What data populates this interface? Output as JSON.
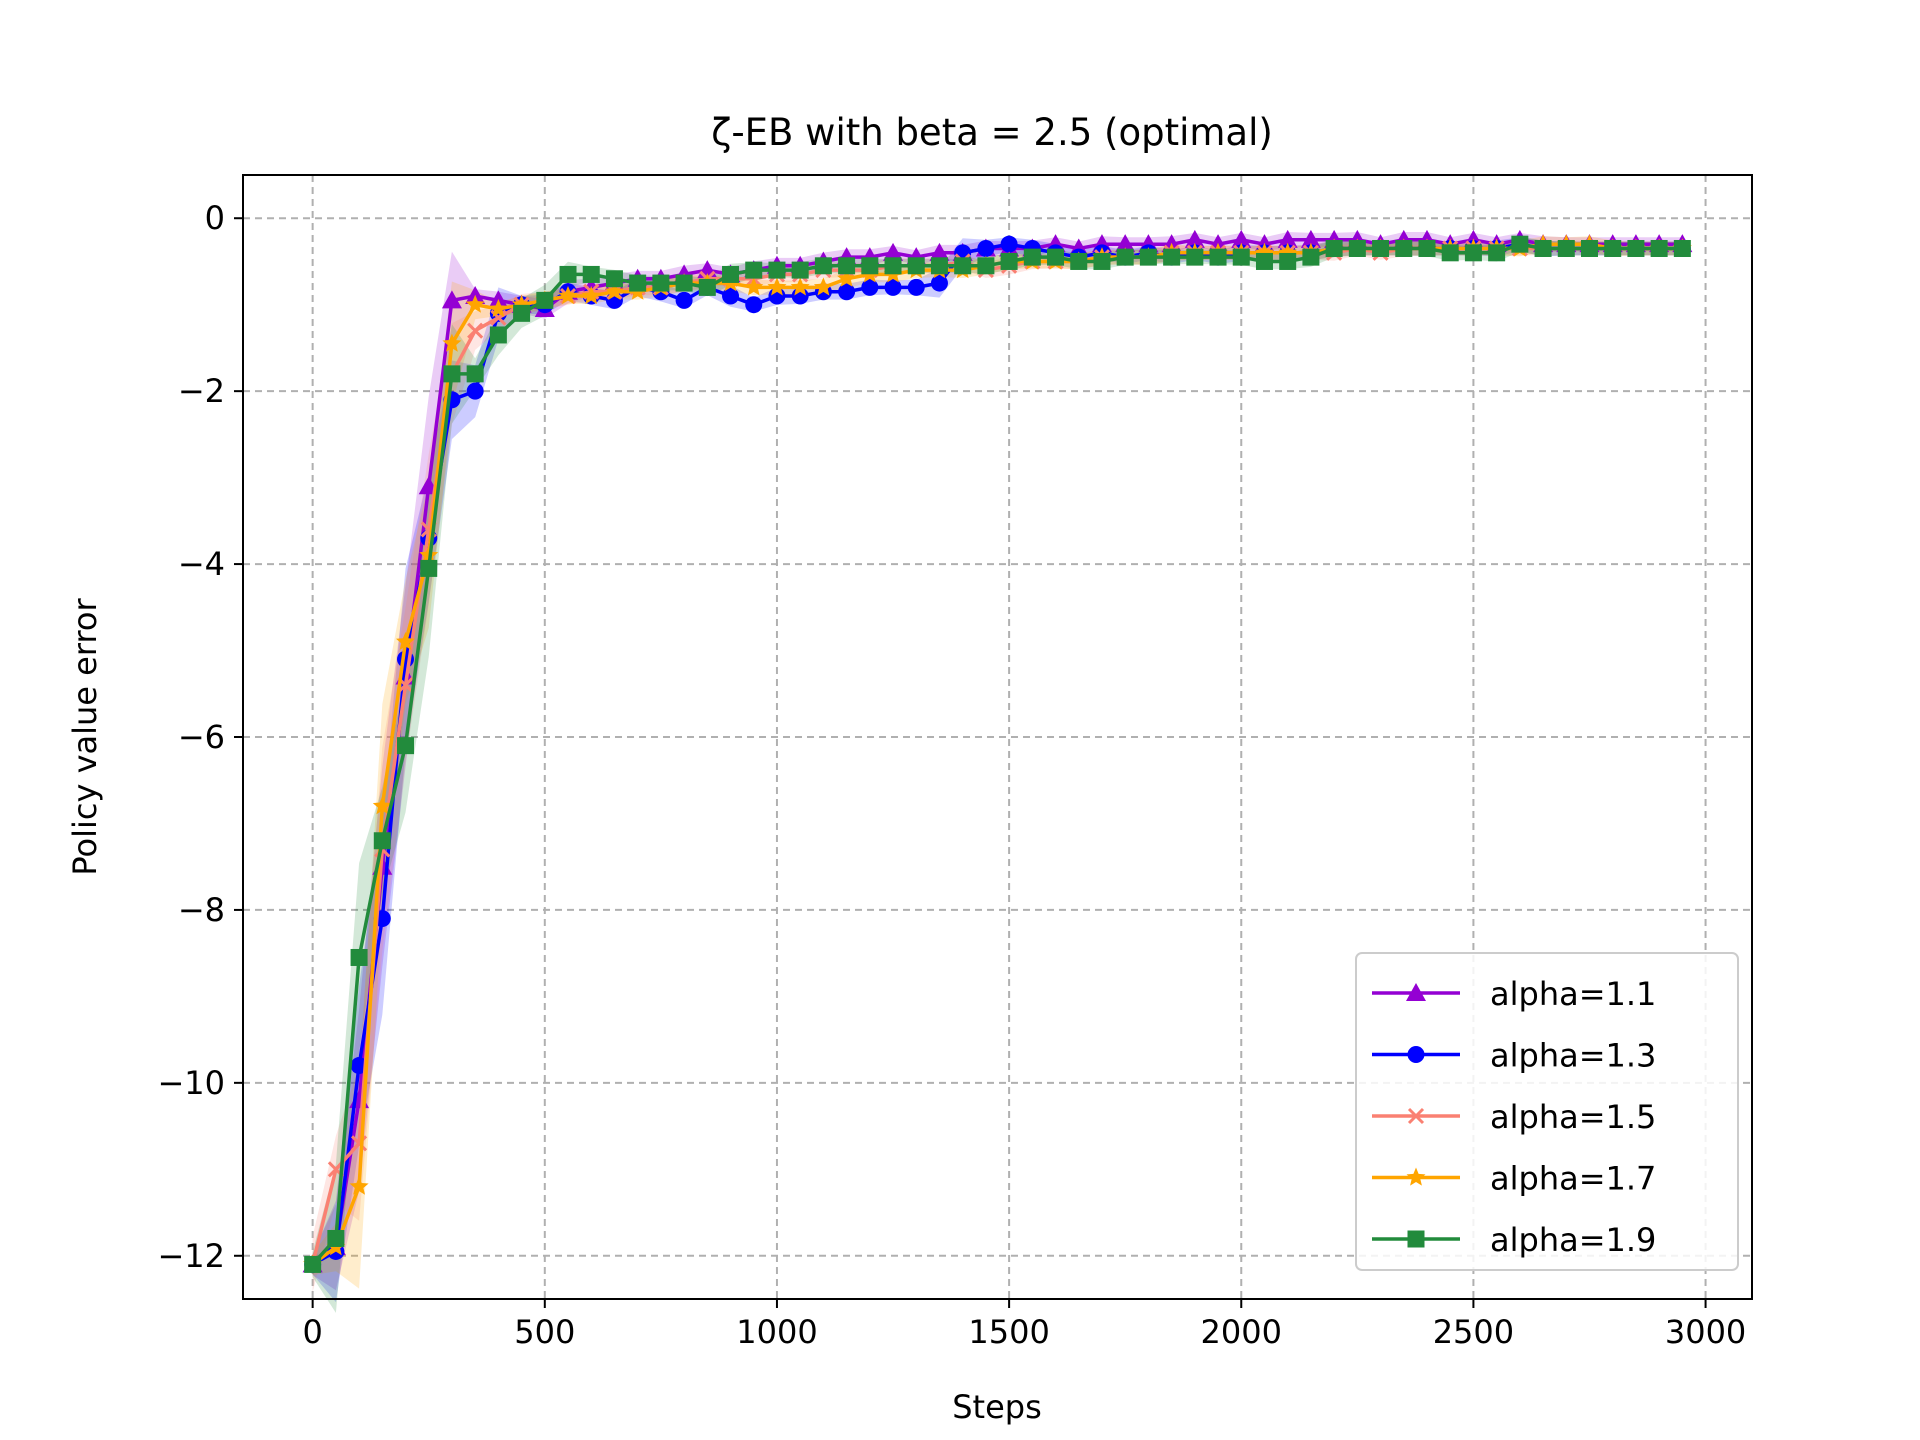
{
  "chart_data": {
    "type": "line",
    "title": "ζ-EB with beta = 2.5 (optimal)",
    "xlabel": "Steps",
    "ylabel": "Policy value error",
    "xlim": [
      -150,
      3100
    ],
    "ylim": [
      -12.5,
      0.5
    ],
    "xticks": [
      0,
      500,
      1000,
      1500,
      2000,
      2500,
      3000
    ],
    "xtick_labels": [
      "0",
      "500",
      "1000",
      "1500",
      "2000",
      "2500",
      "3000"
    ],
    "yticks": [
      0,
      -2,
      -4,
      -6,
      -8,
      -10,
      -12
    ],
    "ytick_labels": [
      "0",
      "−2",
      "−4",
      "−6",
      "−8",
      "−10",
      "−12"
    ],
    "grid": true,
    "legend_position": "lower right",
    "x": [
      0,
      50,
      100,
      150,
      200,
      250,
      300,
      350,
      400,
      450,
      500,
      550,
      600,
      650,
      700,
      750,
      800,
      850,
      900,
      950,
      1000,
      1050,
      1100,
      1150,
      1200,
      1250,
      1300,
      1350,
      1400,
      1450,
      1500,
      1550,
      1600,
      1650,
      1700,
      1750,
      1800,
      1850,
      1900,
      1950,
      2000,
      2050,
      2100,
      2150,
      2200,
      2250,
      2300,
      2350,
      2400,
      2450,
      2500,
      2550,
      2600,
      2650,
      2700,
      2750,
      2800,
      2850,
      2900,
      2950
    ],
    "series": [
      {
        "name": "alpha=1.1",
        "color": "#9400d3",
        "marker": "triangle",
        "values": [
          -12.1,
          -11.9,
          -10.2,
          -7.5,
          -5.3,
          -3.1,
          -0.95,
          -0.9,
          -0.95,
          -1.0,
          -1.05,
          -0.85,
          -0.8,
          -0.75,
          -0.7,
          -0.7,
          -0.65,
          -0.6,
          -0.65,
          -0.6,
          -0.55,
          -0.55,
          -0.5,
          -0.45,
          -0.45,
          -0.4,
          -0.45,
          -0.4,
          -0.4,
          -0.35,
          -0.35,
          -0.35,
          -0.3,
          -0.35,
          -0.3,
          -0.3,
          -0.3,
          -0.3,
          -0.25,
          -0.3,
          -0.25,
          -0.3,
          -0.25,
          -0.25,
          -0.25,
          -0.25,
          -0.3,
          -0.25,
          -0.25,
          -0.3,
          -0.25,
          -0.3,
          -0.25,
          -0.3,
          -0.3,
          -0.3,
          -0.3,
          -0.3,
          -0.3,
          -0.3
        ]
      },
      {
        "name": "alpha=1.3",
        "color": "#0000ff",
        "marker": "circle",
        "values": [
          -12.1,
          -11.95,
          -9.8,
          -8.1,
          -5.1,
          -3.7,
          -2.1,
          -2.0,
          -1.1,
          -1.0,
          -1.0,
          -0.85,
          -0.9,
          -0.95,
          -0.8,
          -0.85,
          -0.95,
          -0.8,
          -0.9,
          -1.0,
          -0.9,
          -0.9,
          -0.85,
          -0.85,
          -0.8,
          -0.8,
          -0.8,
          -0.75,
          -0.4,
          -0.35,
          -0.3,
          -0.35,
          -0.4,
          -0.45,
          -0.4,
          -0.45,
          -0.4,
          -0.45,
          -0.4,
          -0.45,
          -0.4,
          -0.4,
          -0.4,
          -0.4,
          -0.35,
          -0.35,
          -0.35,
          -0.35,
          -0.35,
          -0.35,
          -0.35,
          -0.35,
          -0.3,
          -0.35,
          -0.35,
          -0.35,
          -0.35,
          -0.35,
          -0.35,
          -0.35
        ]
      },
      {
        "name": "alpha=1.5",
        "color": "#fa8072",
        "marker": "x",
        "values": [
          -12.1,
          -11.0,
          -10.7,
          -7.3,
          -5.4,
          -3.6,
          -1.8,
          -1.3,
          -1.15,
          -1.0,
          -0.95,
          -0.9,
          -0.85,
          -0.85,
          -0.8,
          -0.8,
          -0.75,
          -0.7,
          -0.7,
          -0.7,
          -0.65,
          -0.65,
          -0.6,
          -0.6,
          -0.6,
          -0.55,
          -0.55,
          -0.55,
          -0.5,
          -0.6,
          -0.55,
          -0.5,
          -0.5,
          -0.5,
          -0.45,
          -0.45,
          -0.45,
          -0.4,
          -0.4,
          -0.4,
          -0.4,
          -0.4,
          -0.4,
          -0.4,
          -0.4,
          -0.35,
          -0.4,
          -0.35,
          -0.35,
          -0.35,
          -0.35,
          -0.35,
          -0.35,
          -0.35,
          -0.35,
          -0.35,
          -0.35,
          -0.35,
          -0.35,
          -0.35
        ]
      },
      {
        "name": "alpha=1.7",
        "color": "#ffa500",
        "marker": "star",
        "values": [
          -12.1,
          -11.9,
          -11.2,
          -6.8,
          -4.9,
          -3.9,
          -1.45,
          -1.0,
          -1.05,
          -1.0,
          -0.95,
          -0.9,
          -0.9,
          -0.85,
          -0.85,
          -0.8,
          -0.75,
          -0.75,
          -0.75,
          -0.8,
          -0.8,
          -0.8,
          -0.8,
          -0.7,
          -0.65,
          -0.65,
          -0.6,
          -0.6,
          -0.6,
          -0.55,
          -0.5,
          -0.5,
          -0.5,
          -0.5,
          -0.45,
          -0.45,
          -0.45,
          -0.4,
          -0.4,
          -0.4,
          -0.4,
          -0.4,
          -0.4,
          -0.4,
          -0.35,
          -0.35,
          -0.35,
          -0.35,
          -0.35,
          -0.35,
          -0.35,
          -0.35,
          -0.35,
          -0.3,
          -0.3,
          -0.3,
          -0.35,
          -0.35,
          -0.35,
          -0.35
        ]
      },
      {
        "name": "alpha=1.9",
        "color": "#228b3c",
        "marker": "square",
        "values": [
          -12.1,
          -11.8,
          -8.55,
          -7.2,
          -6.1,
          -4.05,
          -1.8,
          -1.8,
          -1.35,
          -1.1,
          -0.95,
          -0.65,
          -0.65,
          -0.7,
          -0.75,
          -0.75,
          -0.75,
          -0.8,
          -0.65,
          -0.6,
          -0.6,
          -0.6,
          -0.55,
          -0.55,
          -0.55,
          -0.55,
          -0.55,
          -0.55,
          -0.55,
          -0.55,
          -0.5,
          -0.45,
          -0.45,
          -0.5,
          -0.5,
          -0.45,
          -0.45,
          -0.45,
          -0.45,
          -0.45,
          -0.45,
          -0.5,
          -0.5,
          -0.45,
          -0.35,
          -0.35,
          -0.35,
          -0.35,
          -0.35,
          -0.4,
          -0.4,
          -0.4,
          -0.3,
          -0.35,
          -0.35,
          -0.35,
          -0.35,
          -0.35,
          -0.35,
          -0.35
        ]
      }
    ]
  }
}
